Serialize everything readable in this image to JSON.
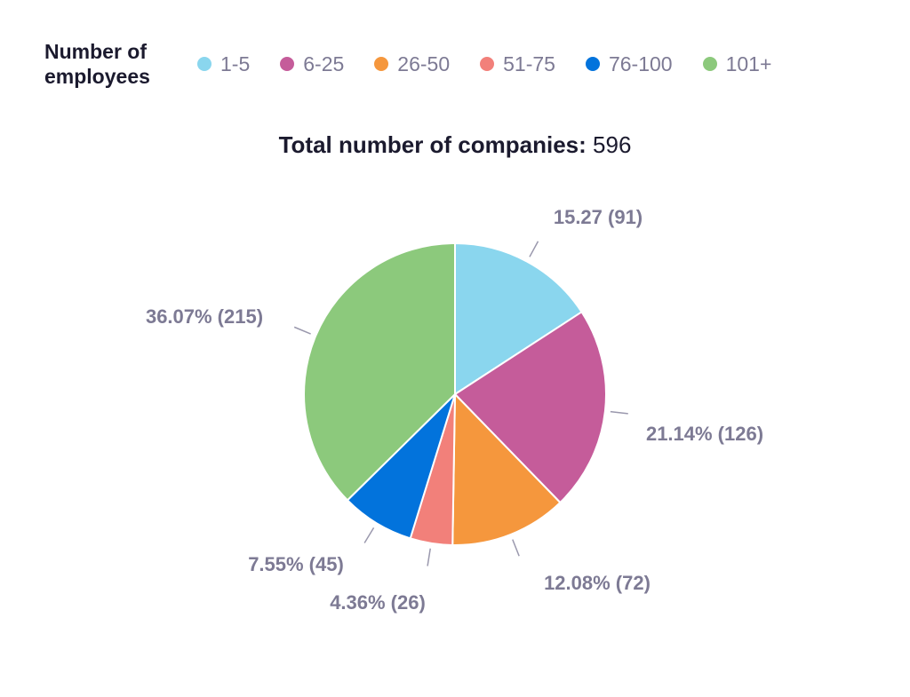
{
  "chart_data": {
    "type": "pie",
    "title": "Total number of companies:",
    "total": "596",
    "legend_title": "Number of employees",
    "legend_position": "top",
    "categories": [
      "1-5",
      "6-25",
      "26-50",
      "51-75",
      "76-100",
      "101+"
    ],
    "values": [
      91,
      126,
      72,
      26,
      45,
      215
    ],
    "percents": [
      15.27,
      21.14,
      12.08,
      4.36,
      7.55,
      36.07
    ],
    "data_labels": [
      "15.27 (91)",
      "21.14% (126)",
      "12.08% (72)",
      "4.36% (26)",
      "7.55% (45)",
      "36.07% (215)"
    ],
    "colors": [
      "#8ad6ee",
      "#c55c9a",
      "#f5973d",
      "#f2807a",
      "#0273dc",
      "#8cc97c"
    ]
  }
}
